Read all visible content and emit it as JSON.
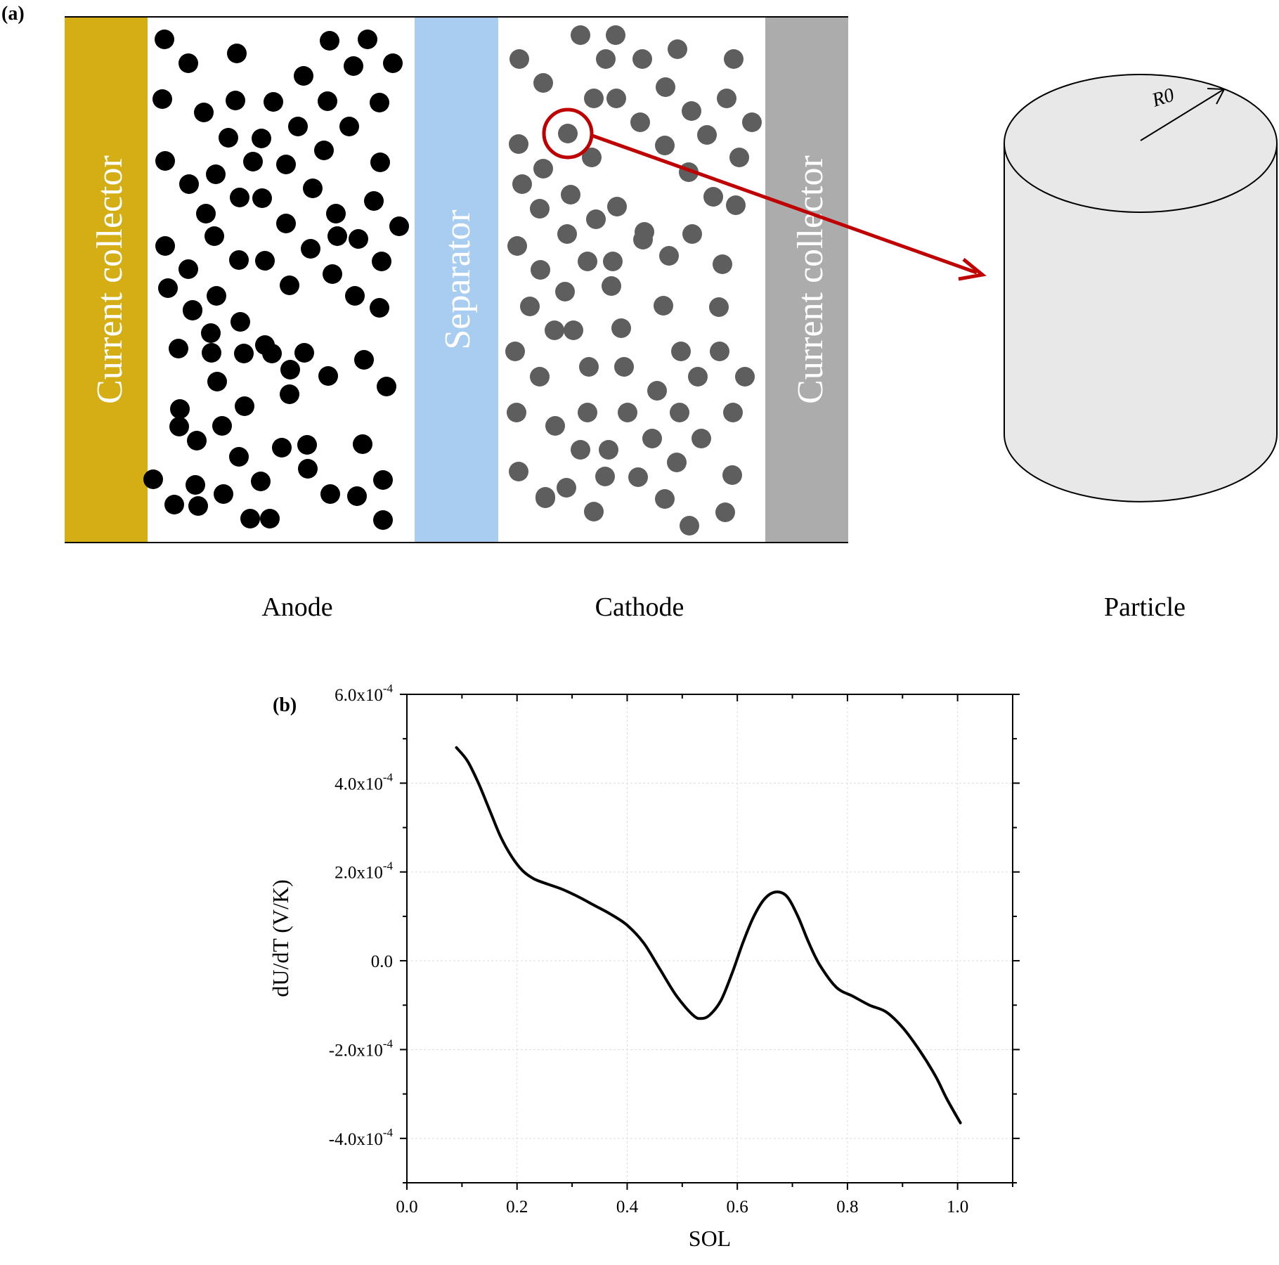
{
  "panel_a": {
    "label": "(a)",
    "left_collector_label": "Current collector",
    "separator_label": "Separator",
    "right_collector_label": "Current collector",
    "anode_label": "Anode",
    "cathode_label": "Cathode",
    "particle_label": "Particle",
    "radius_label": "R0",
    "colors": {
      "left_collector": "#D4AE14",
      "separator": "#A9CDF0",
      "right_collector": "#ACACAC",
      "anode_particles": "#000000",
      "cathode_particles": "#5E5E5E",
      "highlight": "#C00000",
      "cylinder_fill": "#E8E8E8"
    }
  },
  "panel_b": {
    "label": "(b)"
  },
  "chart_data": {
    "type": "line",
    "title": "",
    "xlabel": "SOL",
    "ylabel": "dU/dT (V/K)",
    "xlim": [
      0.0,
      1.1
    ],
    "ylim": [
      -0.0005,
      0.0006
    ],
    "x_ticks": [
      "0.0",
      "0.2",
      "0.4",
      "0.6",
      "0.8",
      "1.0"
    ],
    "x_tick_values": [
      0.0,
      0.2,
      0.4,
      0.6,
      0.8,
      1.0
    ],
    "y_tick_values": [
      -0.0004,
      -0.0002,
      0.0,
      0.0002,
      0.0004,
      0.0006
    ],
    "y_ticks": [
      {
        "mantissa": "-4.0x10",
        "exp": "-4",
        "plain": ""
      },
      {
        "mantissa": "-2.0x10",
        "exp": "-4",
        "plain": ""
      },
      {
        "mantissa": "",
        "exp": "",
        "plain": "0.0"
      },
      {
        "mantissa": "2.0x10",
        "exp": "-4",
        "plain": ""
      },
      {
        "mantissa": "4.0x10",
        "exp": "-4",
        "plain": ""
      },
      {
        "mantissa": "6.0x10",
        "exp": "-4",
        "plain": ""
      }
    ],
    "grid": true,
    "series": [
      {
        "x": [
          0.09,
          0.11,
          0.13,
          0.15,
          0.17,
          0.19,
          0.21,
          0.23,
          0.25,
          0.28,
          0.31,
          0.34,
          0.37,
          0.4,
          0.43,
          0.46,
          0.49,
          0.52,
          0.535,
          0.55,
          0.57,
          0.59,
          0.61,
          0.63,
          0.65,
          0.67,
          0.69,
          0.71,
          0.73,
          0.75,
          0.78,
          0.81,
          0.84,
          0.87,
          0.9,
          0.93,
          0.96,
          0.98,
          1.005
        ],
        "y": [
          0.00048,
          0.00045,
          0.0004,
          0.00034,
          0.00028,
          0.000235,
          0.000203,
          0.000185,
          0.000175,
          0.000162,
          0.000145,
          0.000125,
          0.000105,
          8e-05,
          4e-05,
          -2e-05,
          -8e-05,
          -0.000123,
          -0.00013,
          -0.000122,
          -9e-05,
          -3e-05,
          4e-05,
          0.0001,
          0.00014,
          0.000155,
          0.000145,
          0.0001,
          4e-05,
          -1e-05,
          -6e-05,
          -8e-05,
          -0.0001,
          -0.000115,
          -0.00015,
          -0.0002,
          -0.00026,
          -0.00031,
          -0.000365
        ]
      }
    ]
  }
}
